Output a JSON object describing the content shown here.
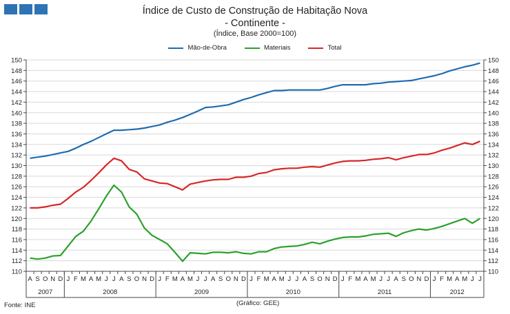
{
  "colors": {
    "logo": "#2e74b5",
    "mao_de_obra": "#1f6bb0",
    "materiais": "#2ca02c",
    "total": "#d62728",
    "axis": "#444444",
    "grid": "#d8d8d8"
  },
  "header": {
    "title": "Índice de Custo de Construção de Habitação Nova",
    "subtitle": "- Continente -",
    "note": "(Índice, Base 2000=100)"
  },
  "footer": {
    "source": "Fonte: INE",
    "credit": "(Gráfico: GEE)"
  },
  "chart_data": {
    "type": "line",
    "title": "Índice de Custo de Construção de Habitação Nova - Continente -",
    "ylabel": "Índice, Base 2000=100",
    "ylim": [
      110,
      150
    ],
    "yticks": [
      110,
      112,
      114,
      116,
      118,
      120,
      122,
      124,
      126,
      128,
      130,
      132,
      134,
      136,
      138,
      140,
      142,
      144,
      146,
      148,
      150
    ],
    "grid": true,
    "legend": "top-center",
    "x": [
      "A",
      "S",
      "O",
      "N",
      "D",
      "J",
      "F",
      "M",
      "A",
      "M",
      "J",
      "J",
      "A",
      "S",
      "O",
      "N",
      "D",
      "J",
      "F",
      "M",
      "A",
      "M",
      "J",
      "J",
      "A",
      "S",
      "O",
      "N",
      "D",
      "J",
      "F",
      "M",
      "A",
      "M",
      "J",
      "J",
      "A",
      "S",
      "O",
      "N",
      "D",
      "J",
      "F",
      "M",
      "A",
      "M",
      "J",
      "J",
      "A",
      "S",
      "O",
      "N",
      "D",
      "J",
      "F",
      "M",
      "A",
      "M",
      "J",
      "J"
    ],
    "year_groups": [
      {
        "label": "2007",
        "start": 0,
        "end": 4
      },
      {
        "label": "2008",
        "start": 5,
        "end": 16
      },
      {
        "label": "2009",
        "start": 17,
        "end": 28
      },
      {
        "label": "2010",
        "start": 29,
        "end": 40
      },
      {
        "label": "2011",
        "start": 41,
        "end": 52
      },
      {
        "label": "2012",
        "start": 53,
        "end": 59
      }
    ],
    "series": [
      {
        "name": "Mão-de-Obra",
        "color": "#1f6bb0",
        "values": [
          131.4,
          131.6,
          131.8,
          132.1,
          132.4,
          132.7,
          133.3,
          134.0,
          134.6,
          135.3,
          136.0,
          136.7,
          136.7,
          136.8,
          136.9,
          137.1,
          137.4,
          137.7,
          138.2,
          138.6,
          139.1,
          139.7,
          140.3,
          141.0,
          141.1,
          141.3,
          141.5,
          142.0,
          142.5,
          142.9,
          143.4,
          143.8,
          144.2,
          144.2,
          144.3,
          144.3,
          144.3,
          144.3,
          144.3,
          144.6,
          145.0,
          145.3,
          145.3,
          145.3,
          145.3,
          145.5,
          145.6,
          145.8,
          145.9,
          146.0,
          146.1,
          146.4,
          146.7,
          147.0,
          147.4,
          147.9,
          148.3,
          148.7,
          149.0,
          149.4
        ]
      },
      {
        "name": "Materiais",
        "color": "#2ca02c",
        "values": [
          112.5,
          112.3,
          112.5,
          112.9,
          113.0,
          114.8,
          116.6,
          117.6,
          119.5,
          121.8,
          124.2,
          126.3,
          125.0,
          122.2,
          120.8,
          118.2,
          116.8,
          116.0,
          115.2,
          113.6,
          111.9,
          113.5,
          113.4,
          113.3,
          113.6,
          113.6,
          113.5,
          113.7,
          113.4,
          113.3,
          113.7,
          113.7,
          114.3,
          114.6,
          114.7,
          114.8,
          115.1,
          115.5,
          115.2,
          115.7,
          116.1,
          116.4,
          116.5,
          116.5,
          116.7,
          117.0,
          117.1,
          117.2,
          116.6,
          117.3,
          117.7,
          118.0,
          117.8,
          118.1,
          118.5,
          119.0,
          119.5,
          120.0,
          119.1,
          120.0
        ]
      },
      {
        "name": "Total",
        "color": "#d62728",
        "values": [
          122.0,
          122.0,
          122.2,
          122.5,
          122.7,
          123.8,
          125.0,
          125.9,
          127.2,
          128.6,
          130.1,
          131.4,
          130.9,
          129.3,
          128.8,
          127.5,
          127.1,
          126.7,
          126.6,
          126.0,
          125.4,
          126.5,
          126.8,
          127.1,
          127.3,
          127.4,
          127.4,
          127.8,
          127.8,
          128.0,
          128.5,
          128.7,
          129.2,
          129.4,
          129.5,
          129.5,
          129.7,
          129.8,
          129.7,
          130.1,
          130.5,
          130.8,
          130.9,
          130.9,
          131.0,
          131.2,
          131.3,
          131.5,
          131.1,
          131.5,
          131.8,
          132.1,
          132.1,
          132.4,
          132.9,
          133.3,
          133.8,
          134.3,
          134.0,
          134.6
        ]
      }
    ]
  }
}
